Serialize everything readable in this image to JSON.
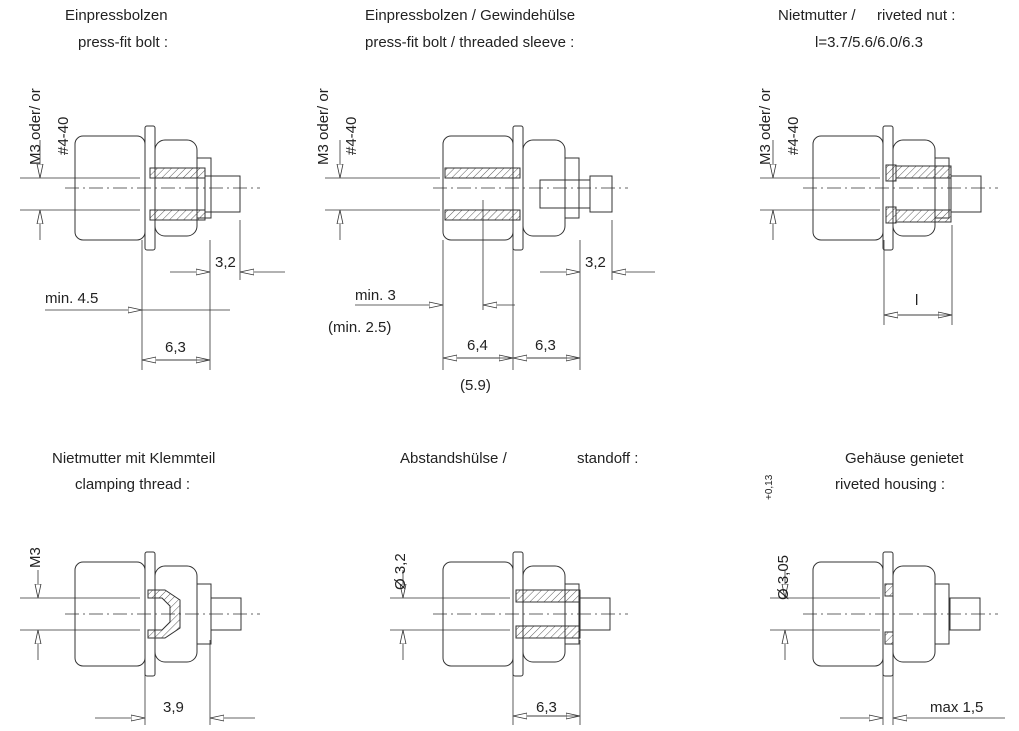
{
  "panels": [
    {
      "title_de": "Einpressbolzen",
      "title_en": "press-fit bolt :",
      "thread": "M3 oder/  or",
      "thread_alt": "#4-40",
      "dims": [
        "3,2",
        "min. 4.5",
        "6,3"
      ]
    },
    {
      "title_de": "Einpressbolzen / Gewindehülse",
      "title_en": "press-fit bolt / threaded sleeve :",
      "thread": "M3 oder/  or",
      "thread_alt": "#4-40",
      "dims": [
        "3,2",
        "min. 3",
        "(min. 2.5)",
        "6,4",
        "6,3",
        "(5.9)"
      ]
    },
    {
      "title_de": "Nietmutter /",
      "title_en": "riveted nut :",
      "note": "l=3.7/5.6/6.0/6.3",
      "thread": "M3 oder/  or",
      "thread_alt": "#4-40",
      "dims": [
        "l"
      ]
    },
    {
      "title_de": "Nietmutter mit Klemmteil",
      "title_en": "clamping thread :",
      "thread": "M3",
      "dims": [
        "3,9"
      ]
    },
    {
      "title_de": "Abstandshülse /",
      "title_en": "standoff :",
      "thread": "Ø 3,2",
      "dims": [
        "6,3"
      ]
    },
    {
      "title_de": "Gehäuse genietet",
      "title_en": "riveted housing :",
      "thread": "Ø 3,05",
      "tolerance": "+0,13",
      "dims": [
        "max  1,5"
      ]
    }
  ]
}
